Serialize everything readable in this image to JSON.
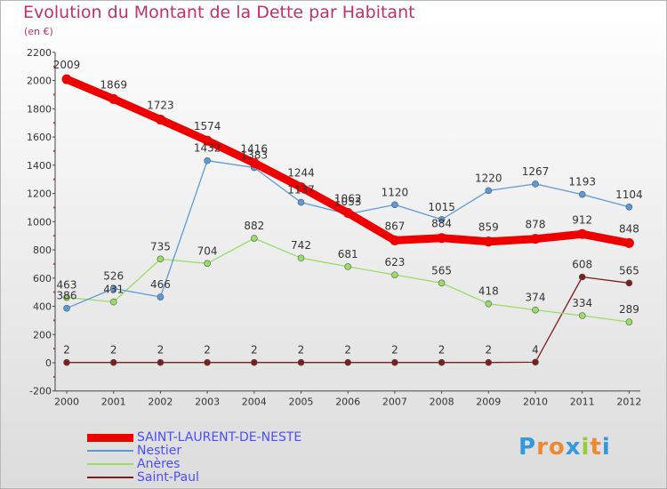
{
  "header": {
    "title": "Evolution du Montant de la Dette par Habitant",
    "subtitle": "(en €)"
  },
  "colors": {
    "title": "#c0306a",
    "legend_text": "#4d4dff",
    "axis": "#444444",
    "grid_ticks": "#c0306a"
  },
  "chart_data": {
    "type": "line",
    "title": "Evolution du Montant de la Dette par Habitant",
    "subtitle": "(en €)",
    "xlabel": "",
    "ylabel": "",
    "x": [
      "2000",
      "2001",
      "2002",
      "2003",
      "2004",
      "2005",
      "2006",
      "2007",
      "2008",
      "2009",
      "2010",
      "2011",
      "2012"
    ],
    "ylim": [
      -200,
      2200
    ],
    "yticks": [
      -200,
      0,
      200,
      400,
      600,
      800,
      1000,
      1200,
      1400,
      1600,
      1800,
      2000,
      2200
    ],
    "grid": false,
    "legend_position": "bottom-left",
    "series": [
      {
        "name": "SAINT-LAURENT-DE-NESTE",
        "color": "#ee0000",
        "values": [
          2009,
          1869,
          1723,
          1574,
          1416,
          1244,
          1062,
          867,
          884,
          859,
          878,
          912,
          848
        ],
        "labels": [
          "2009",
          "1869",
          "1723",
          "1574",
          "1416",
          "1244",
          "1062",
          "867",
          "884",
          "859",
          "878",
          "912",
          "848"
        ]
      },
      {
        "name": "Nestier",
        "color": "#5b9bd5",
        "values": [
          386,
          526,
          466,
          1432,
          1383,
          1137,
          1053,
          1120,
          1015,
          1220,
          1267,
          1193,
          1104
        ],
        "labels": [
          "386",
          "526",
          "466",
          "1432",
          "1383",
          "1137",
          "1053",
          "1120",
          "1015",
          "1220",
          "1267",
          "1193",
          "1104"
        ]
      },
      {
        "name": "Anères",
        "color": "#99dd66",
        "values": [
          463,
          431,
          735,
          704,
          882,
          742,
          681,
          623,
          565,
          418,
          374,
          334,
          289
        ],
        "labels": [
          "463",
          "431",
          "735",
          "704",
          "882",
          "742",
          "681",
          "623",
          "565",
          "418",
          "374",
          "334",
          "289"
        ]
      },
      {
        "name": "Saint-Paul",
        "color": "#7a1f1f",
        "values": [
          2,
          2,
          2,
          2,
          2,
          2,
          2,
          2,
          2,
          2,
          4,
          608,
          565
        ],
        "labels": [
          "2",
          "2",
          "2",
          "2",
          "2",
          "2",
          "2",
          "2",
          "2",
          "2",
          "4",
          "608",
          "565"
        ]
      }
    ]
  },
  "logo": {
    "text": "Proxiti",
    "letters": [
      "P",
      "r",
      "o",
      "x",
      "i",
      "t",
      "i"
    ],
    "letter_colors": [
      "#3399dd",
      "#ee8833",
      "#ee8833",
      "#3399dd",
      "#99cc33",
      "#ee8833",
      "#3399dd"
    ]
  }
}
